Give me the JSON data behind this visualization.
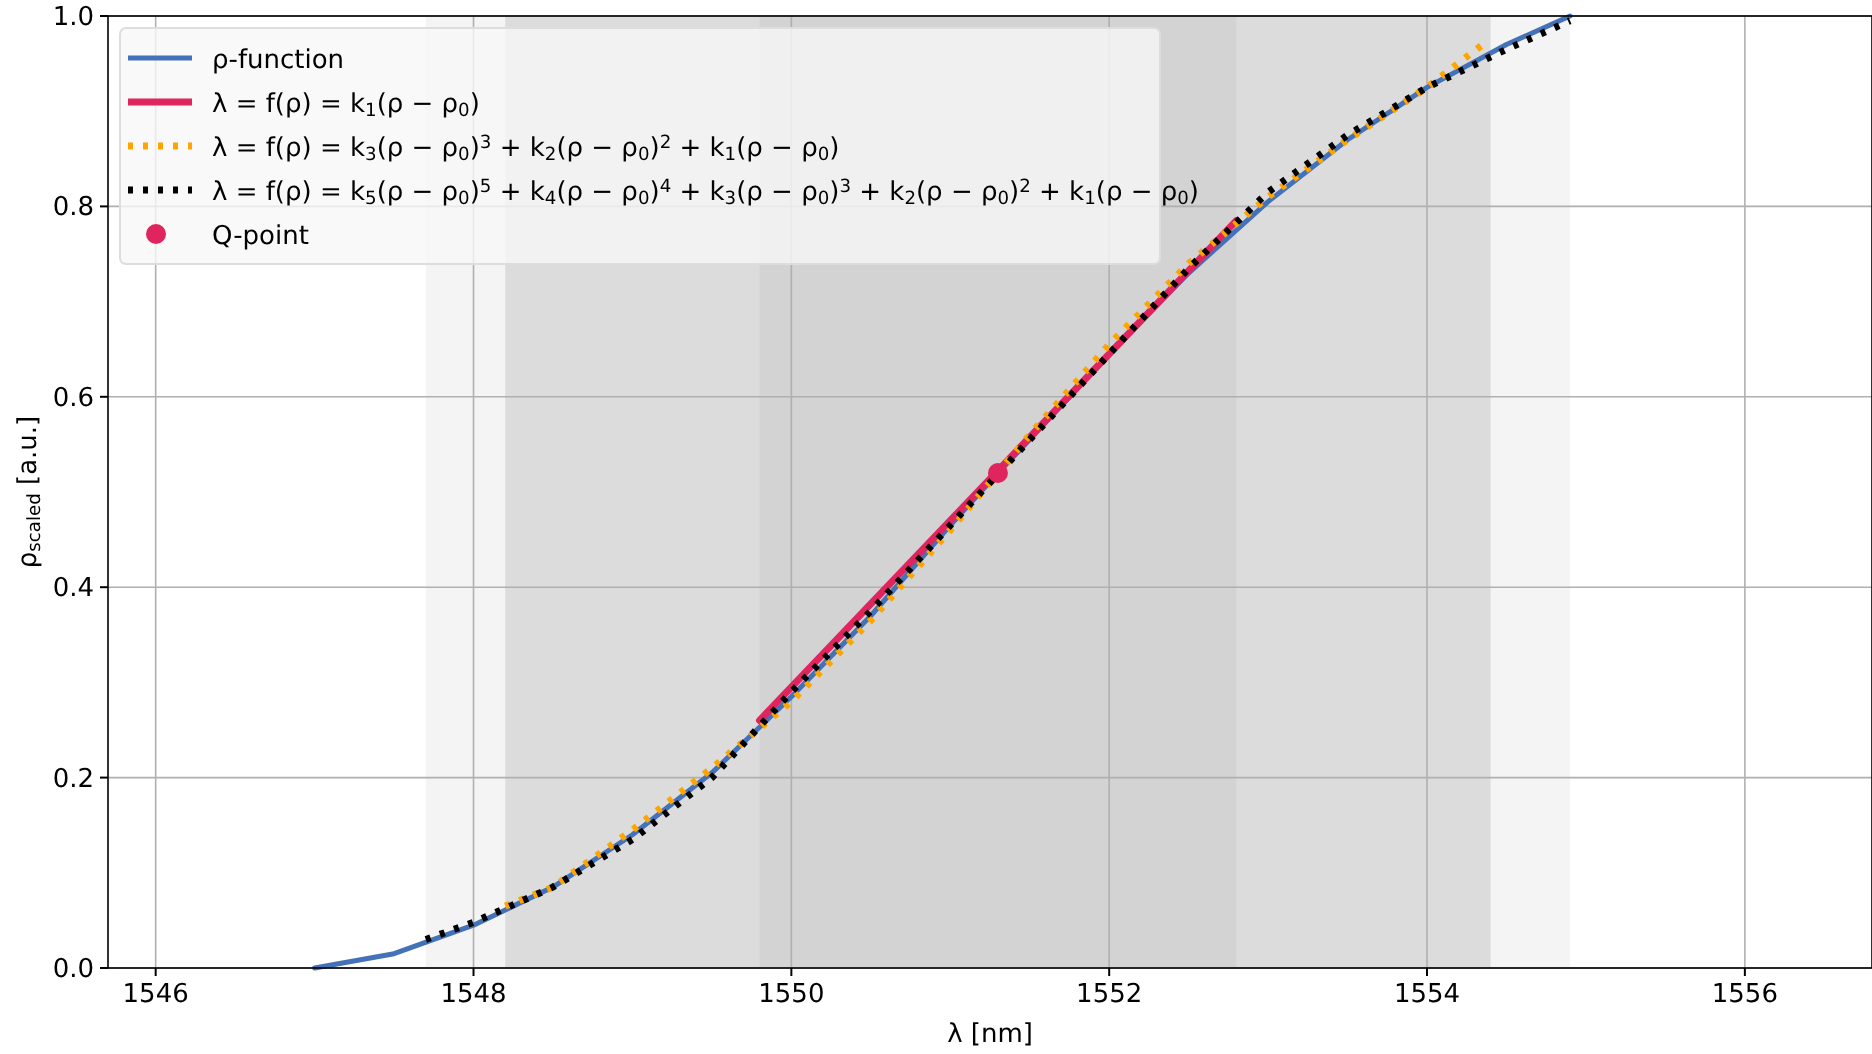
{
  "chart_data": {
    "type": "line",
    "xlabel": "λ [nm]",
    "ylabel": "ρ$_{scaled}$ [a.u.]",
    "xlim": [
      1545.7,
      1556.8
    ],
    "xticks": [
      1546,
      1548,
      1550,
      1552,
      1554,
      1556
    ],
    "ylim": [
      0,
      1
    ],
    "yticks": [
      {
        "value": 0,
        "label": "0.0"
      },
      0.2,
      0.4,
      0.6,
      0.8,
      {
        "value": 1,
        "label": "1.0"
      }
    ],
    "grid": true,
    "legend": "top left",
    "bands": [
      {
        "axis": "x",
        "from": 1547.7,
        "to": 1554.9,
        "color": "#f4f4f4"
      },
      {
        "axis": "x",
        "from": 1548.2,
        "to": 1554.4,
        "color": "#dcdcdc"
      },
      {
        "axis": "x",
        "from": 1549.8,
        "to": 1552.8,
        "color": "#d3d3d3"
      }
    ],
    "series": [
      {
        "name": "ρ-function",
        "color": "#4472b8",
        "line_style": "solid",
        "x": [
          1547,
          1547.5,
          1548,
          1548.5,
          1549,
          1549.5,
          1550,
          1550.5,
          1551,
          1551.3,
          1551.5,
          1552,
          1552.5,
          1553,
          1553.5,
          1554,
          1554.5,
          1554.9
        ],
        "values": [
          0,
          0.015,
          0.045,
          0.085,
          0.14,
          0.205,
          0.285,
          0.37,
          0.465,
          0.52,
          0.555,
          0.645,
          0.73,
          0.805,
          0.87,
          0.925,
          0.97,
          1
        ]
      },
      {
        "name": "λ = f(ρ) = k$_{1}$(ρ − ρ$_{0}$)",
        "color": "#e0245e",
        "line_style": "solid",
        "x": [
          1549.8,
          1552.8
        ],
        "values": [
          0.26,
          0.785
        ]
      },
      {
        "name": "λ = f(ρ) = k$_{3}$(ρ − ρ$_{0}$)$^{3}$ + k$_{2}$(ρ − ρ$_{0}$)$^{2}$ + k$_{1}$(ρ − ρ$_{0}$)",
        "color": "#ffa500",
        "line_style": "dotted",
        "x": [
          1548.2,
          1548.5,
          1549,
          1549.5,
          1550,
          1550.5,
          1551,
          1551.5,
          1552,
          1552.5,
          1553,
          1553.5,
          1554,
          1554.35
        ],
        "values": [
          0.065,
          0.085,
          0.145,
          0.21,
          0.28,
          0.365,
          0.46,
          0.56,
          0.655,
          0.74,
          0.81,
          0.87,
          0.925,
          0.97
        ]
      },
      {
        "name": "λ = f(ρ) = k$_{5}$(ρ − ρ$_{0}$)$^{5}$ + k$_{4}$(ρ − ρ$_{0}$)$^{4}$ + k$_{3}$(ρ − ρ$_{0}$)$^{3}$ + k$_{2}$(ρ − ρ$_{0}$)$^{2}$ + k$_{1}$(ρ − ρ$_{0}$)",
        "color": "#000000",
        "line_style": "dotted",
        "x": [
          1547.7,
          1548,
          1548.5,
          1549,
          1549.5,
          1550,
          1550.5,
          1551,
          1551.5,
          1552,
          1552.5,
          1553,
          1553.5,
          1554,
          1554.5,
          1554.9
        ],
        "values": [
          0.03,
          0.048,
          0.085,
          0.135,
          0.2,
          0.29,
          0.375,
          0.465,
          0.555,
          0.645,
          0.735,
          0.815,
          0.875,
          0.925,
          0.965,
          0.995
        ]
      },
      {
        "name": "Q-point",
        "type": "scatter",
        "marker": "circle",
        "color": "#e0245e",
        "x": [
          1551.3
        ],
        "values": [
          0.52
        ]
      }
    ]
  }
}
